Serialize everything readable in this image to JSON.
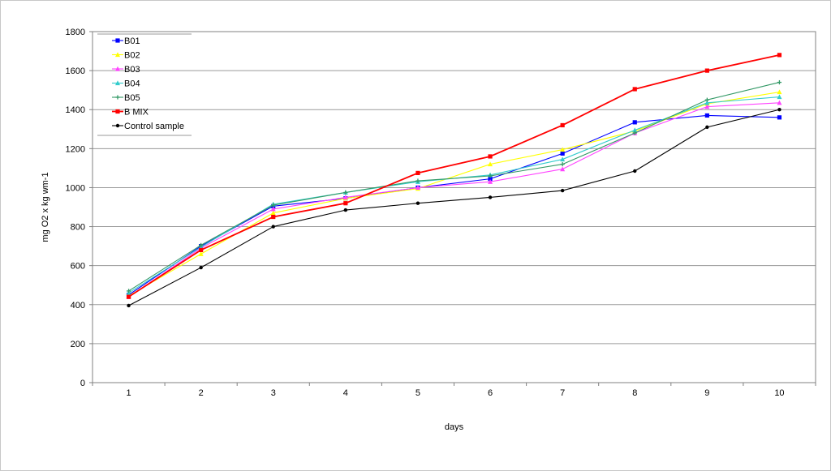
{
  "chart_data": {
    "type": "line",
    "title": "",
    "xlabel": "days",
    "ylabel": "mg O2 x kg wm-1",
    "categories": [
      "1",
      "2",
      "3",
      "4",
      "5",
      "6",
      "7",
      "8",
      "9",
      "10"
    ],
    "ylim": [
      0,
      1800
    ],
    "yticks": [
      0,
      200,
      400,
      600,
      800,
      1000,
      1200,
      1400,
      1600,
      1800
    ],
    "grid": true,
    "legend_position": "top-left",
    "series": [
      {
        "name": "B01",
        "color": "#0000ff",
        "marker": "square",
        "values": [
          450,
          700,
          905,
          945,
          1000,
          1045,
          1175,
          1335,
          1370,
          1360
        ]
      },
      {
        "name": "B02",
        "color": "#ffff00",
        "marker": "triangle",
        "values": [
          445,
          660,
          870,
          945,
          995,
          1120,
          1195,
          1290,
          1430,
          1490
        ]
      },
      {
        "name": "B03",
        "color": "#ff44ff",
        "marker": "triangle",
        "values": [
          440,
          690,
          890,
          950,
          1000,
          1030,
          1095,
          1280,
          1415,
          1435
        ]
      },
      {
        "name": "B04",
        "color": "#33cccc",
        "marker": "triangle",
        "values": [
          460,
          695,
          915,
          975,
          1030,
          1065,
          1145,
          1295,
          1435,
          1465
        ]
      },
      {
        "name": "B05",
        "color": "#339966",
        "marker": "plus",
        "values": [
          470,
          705,
          910,
          975,
          1035,
          1060,
          1120,
          1280,
          1450,
          1540
        ]
      },
      {
        "name": "B MIX",
        "color": "#ff0000",
        "marker": "square",
        "values": [
          440,
          680,
          850,
          920,
          1075,
          1160,
          1320,
          1505,
          1600,
          1680
        ]
      },
      {
        "name": "Control sample",
        "color": "#000000",
        "marker": "circle",
        "values": [
          395,
          590,
          800,
          885,
          920,
          950,
          985,
          1085,
          1310,
          1400
        ]
      }
    ]
  }
}
